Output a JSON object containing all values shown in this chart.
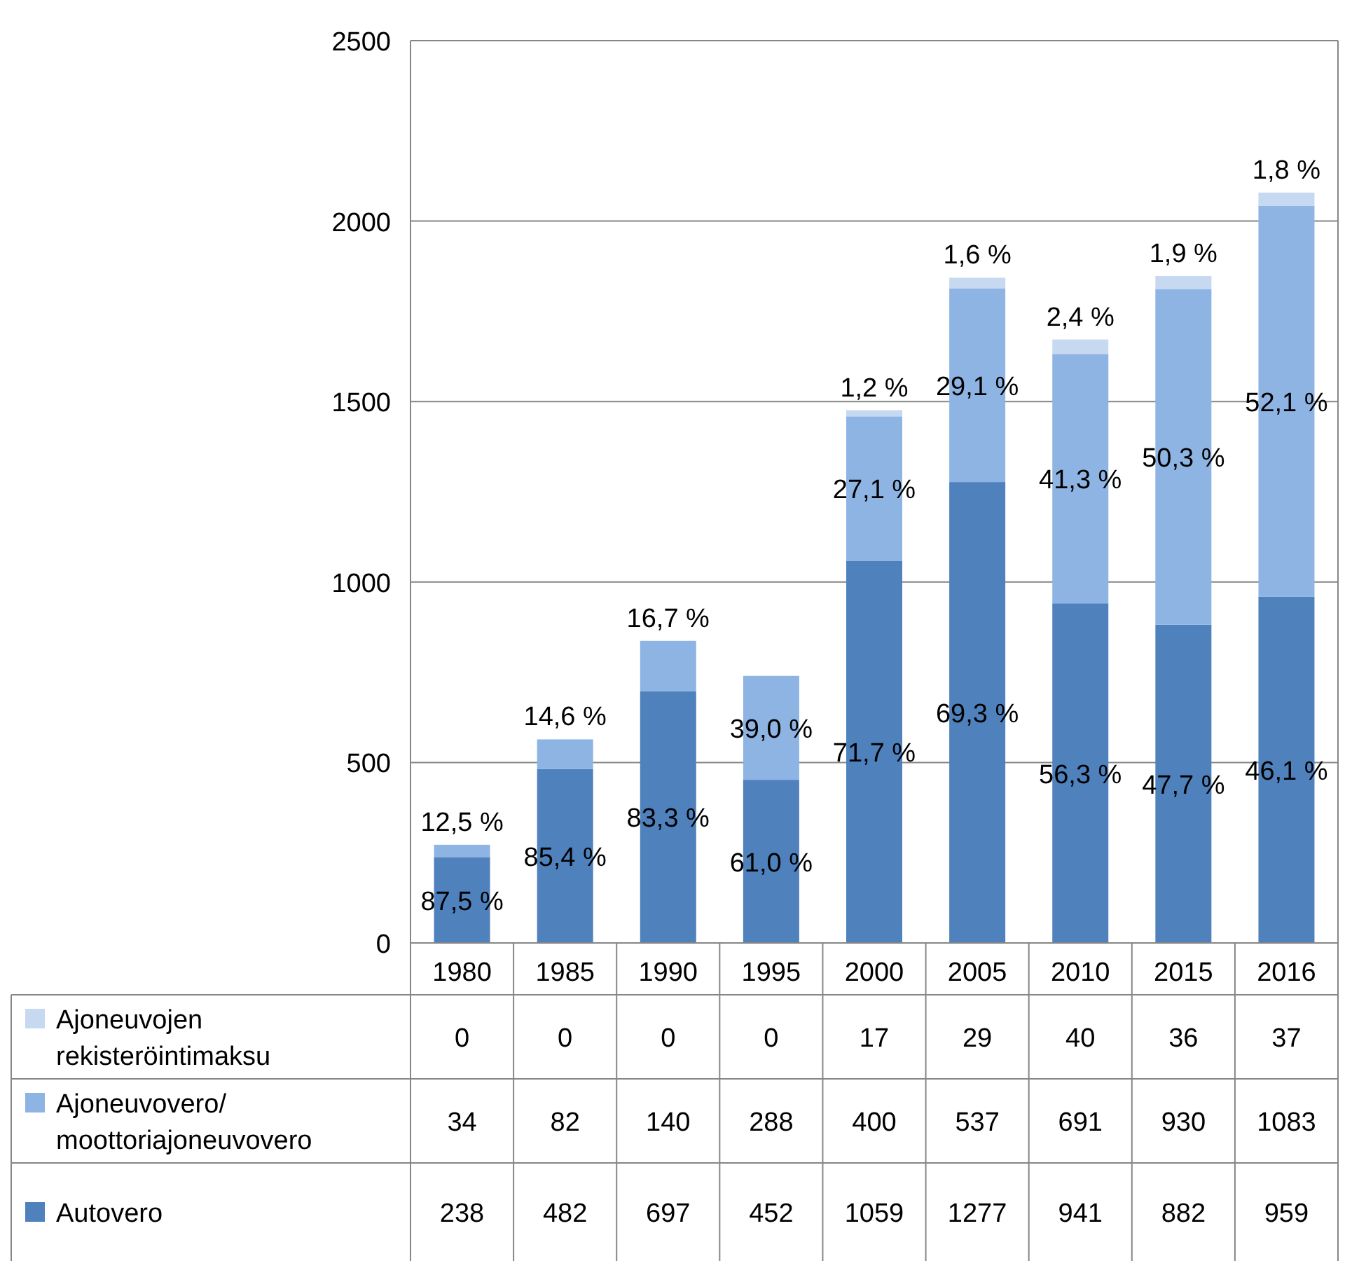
{
  "chart_data": {
    "type": "bar",
    "stacked": true,
    "categories": [
      "1980",
      "1985",
      "1990",
      "1995",
      "2000",
      "2005",
      "2010",
      "2015",
      "2016"
    ],
    "series": [
      {
        "name": "Autovero",
        "color": "#4f81bd",
        "values": [
          238,
          482,
          697,
          452,
          1059,
          1277,
          941,
          882,
          959
        ]
      },
      {
        "name": "Ajoneuvovero/ moottoriajoneuvovero",
        "color": "#8eb4e3",
        "values": [
          34,
          82,
          140,
          288,
          400,
          537,
          691,
          930,
          1083
        ]
      },
      {
        "name": "Ajoneuvojen rekisteröintimaksu",
        "color": "#c6d9f1",
        "values": [
          0,
          0,
          0,
          0,
          17,
          29,
          40,
          36,
          37
        ]
      }
    ],
    "annotations": [
      "87,5 %",
      "12,5 %",
      "85,4 %",
      "14,6 %",
      "83,3 %",
      "16,7 %",
      "61,0 %",
      "39,0 %",
      "71,7 %",
      "27,1 %",
      "1,2 %",
      "69,3 %",
      "29,1 %",
      "1,6 %",
      "56,3 %",
      "41,3 %",
      "2,4 %",
      "47,7 %",
      "50,3 %",
      "1,9 %",
      "46,1 %",
      "52,1 %",
      "1,8 %"
    ],
    "ylim": [
      0,
      2500
    ],
    "yticks": [
      0,
      500,
      1000,
      1500,
      2000,
      2500
    ],
    "grid": "y",
    "legend": "bottom",
    "data_labels": true
  }
}
